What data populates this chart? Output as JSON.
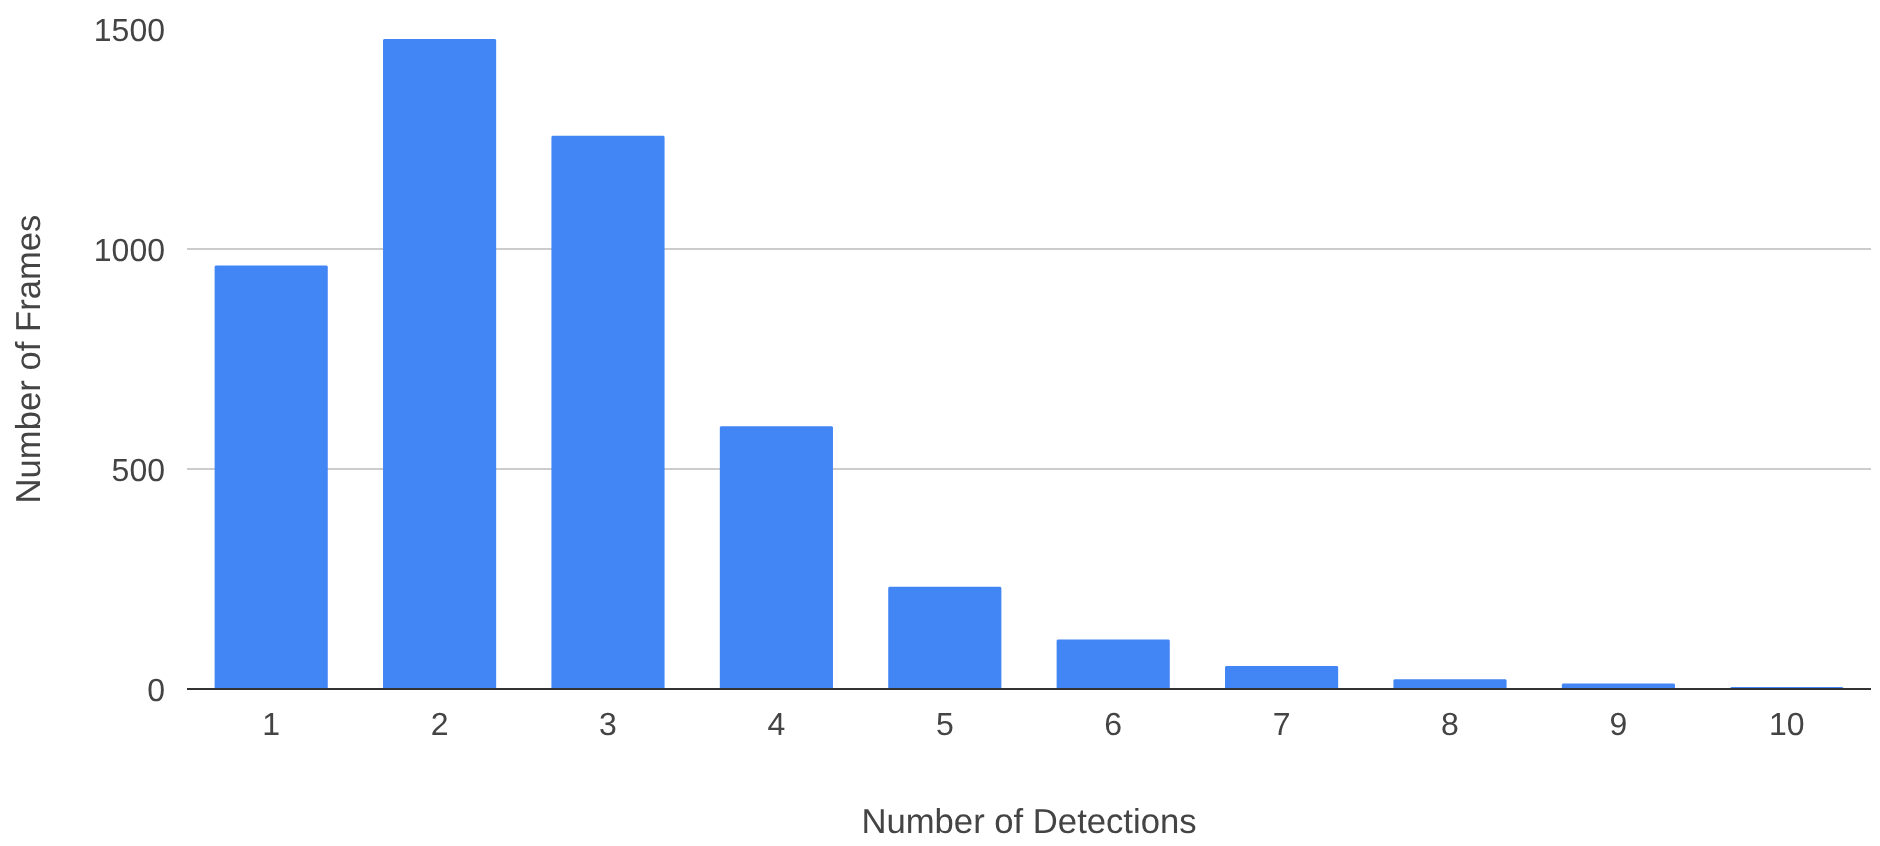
{
  "chart_data": {
    "type": "bar",
    "xlabel": "Number of Detections",
    "ylabel": "Number of Frames",
    "categories": [
      "1",
      "2",
      "3",
      "4",
      "5",
      "6",
      "7",
      "8",
      "9",
      "10"
    ],
    "values": [
      960,
      1475,
      1255,
      595,
      230,
      110,
      50,
      20,
      10,
      2
    ],
    "color": "#4285f4",
    "ylim": [
      0,
      1500
    ],
    "yticks": [
      0,
      500,
      1000,
      1500
    ],
    "grid": "y"
  }
}
